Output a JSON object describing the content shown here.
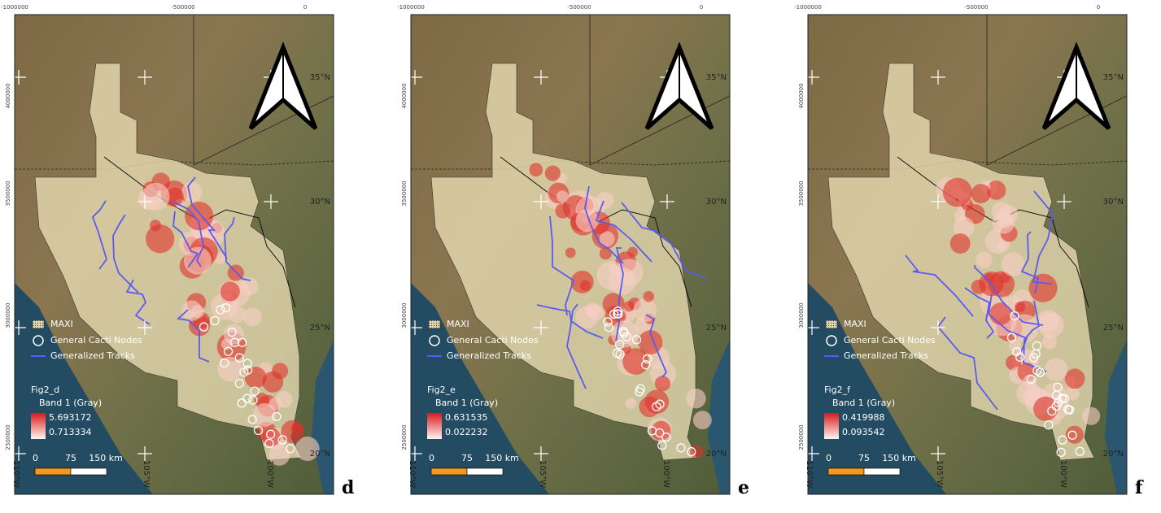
{
  "panels": [
    {
      "letter": "d",
      "top_ticks": [
        "-1000000",
        "-500000",
        "0"
      ],
      "left_ticks": [
        "4000000",
        "3500000",
        "3000000",
        "2500000"
      ],
      "right_ticks": [
        "35°N",
        "30°N",
        "25°N",
        "20°N"
      ],
      "bottom_ticks": [
        "110°W",
        "105°W",
        "100°W"
      ],
      "legend": {
        "items": [
          "MAXI",
          "General Cacti Nodes",
          "Generalized Tracks"
        ],
        "layer": "Fig2_d",
        "band": "Band 1 (Gray)",
        "max": "5.693172",
        "min": "0.713334"
      },
      "scale": [
        "0",
        "75",
        "150 km"
      ]
    },
    {
      "letter": "e",
      "top_ticks": [
        "-1000000",
        "-500000",
        "0"
      ],
      "left_ticks": [
        "4000000",
        "3500000",
        "3000000",
        "2500000"
      ],
      "right_ticks": [
        "35°N",
        "30°N",
        "25°N",
        "20°N"
      ],
      "bottom_ticks": [
        "110°W",
        "105°W",
        "100°W"
      ],
      "legend": {
        "items": [
          "MAXI",
          "General Cacti Nodes",
          "Generalized Tracks"
        ],
        "layer": "Fig2_e",
        "band": "Band 1 (Gray)",
        "max": "0.631535",
        "min": "0.022232"
      },
      "scale": [
        "0",
        "75",
        "150 km"
      ]
    },
    {
      "letter": "f",
      "top_ticks": [
        "-1000000",
        "-500000",
        "0"
      ],
      "left_ticks": [
        "4000000",
        "3500000",
        "3000000",
        "2500000"
      ],
      "right_ticks": [
        "35°N",
        "30°N",
        "25°N",
        "20°N"
      ],
      "bottom_ticks": [
        "110°W",
        "105°W",
        "100°W"
      ],
      "legend": {
        "items": [
          "MAXI",
          "General Cacti Nodes",
          "Generalized Tracks"
        ],
        "layer": "Fig2_f",
        "band": "Band 1 (Gray)",
        "max": "0.419988",
        "min": "0.093542"
      },
      "scale": [
        "0",
        "75",
        "150 km"
      ]
    }
  ]
}
